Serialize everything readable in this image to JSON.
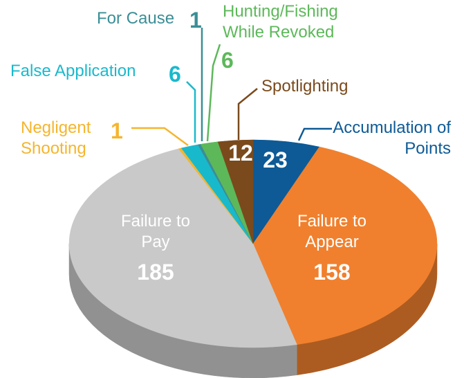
{
  "chart_data": {
    "type": "pie",
    "categories": [
      "Accumulation of Points",
      "Failure to Appear",
      "Failure to Pay",
      "Negligent Shooting",
      "False Application",
      "For Cause",
      "Hunting/Fishing While Revoked",
      "Spotlighting"
    ],
    "values": [
      23,
      158,
      185,
      1,
      6,
      1,
      6,
      12
    ],
    "colors": [
      "#0d5a96",
      "#f0802e",
      "#c9c9c9",
      "#f5b52e",
      "#19b9cc",
      "#3a8e96",
      "#5db85a",
      "#7a4a1c"
    ]
  }
}
